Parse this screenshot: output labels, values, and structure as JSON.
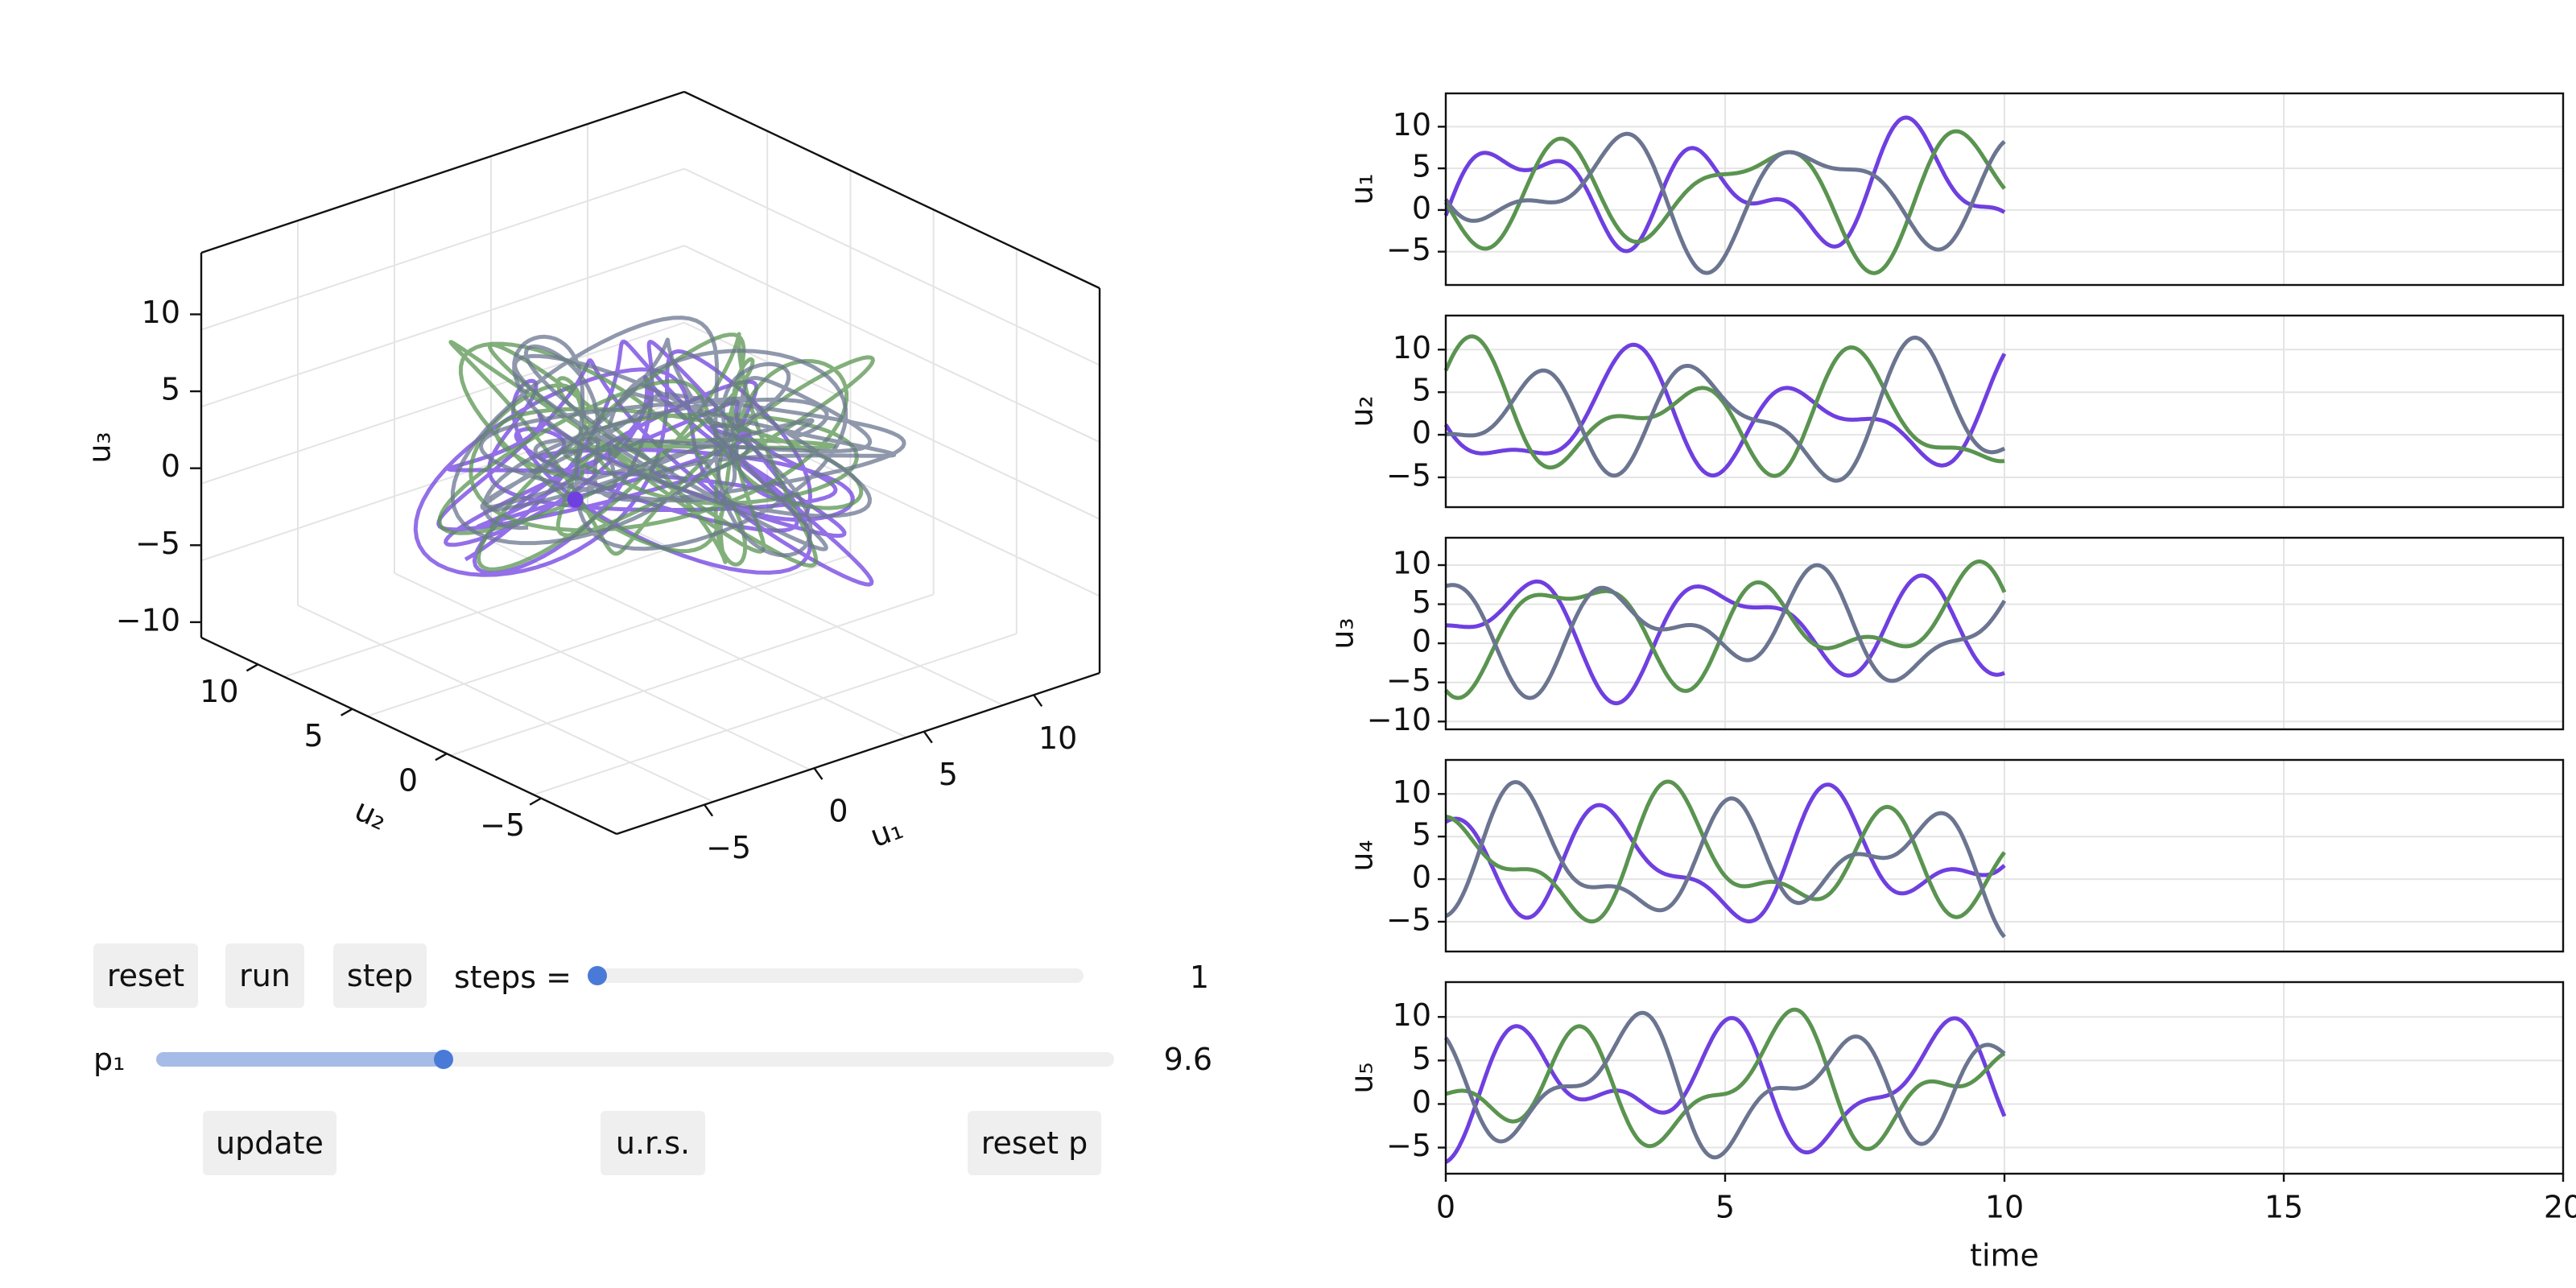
{
  "colors": {
    "purple": "#6f3fe0",
    "green": "#5a9450",
    "slate": "#6b7590",
    "grid": "#e4e4e4",
    "axis": "#111111",
    "button_bg": "#efefef",
    "slider_fill": "#a6bbe6",
    "slider_knob": "#4a7ad8"
  },
  "controls": {
    "reset_label": "reset",
    "run_label": "run",
    "step_label": "step",
    "steps_label": "steps =",
    "steps_value": "1",
    "steps_fraction": 0.0,
    "p1_label": "p₁",
    "p1_value": "9.6",
    "p1_fraction": 0.3,
    "update_label": "update",
    "urs_label": "u.r.s.",
    "reset_p_label": "reset p"
  },
  "chart_data": [
    {
      "type": "line3d",
      "xlabel": "u₁",
      "ylabel": "u₂",
      "zlabel": "u₃",
      "x_ticks": [
        "−5",
        "0",
        "5",
        "10"
      ],
      "y_ticks": [
        "−5",
        "0",
        "5",
        "10"
      ],
      "z_ticks": [
        "−10",
        "−5",
        "0",
        "5",
        "10"
      ],
      "xlim": [
        -9,
        13
      ],
      "ylim": [
        -9,
        13
      ],
      "zlim": [
        -11,
        14
      ],
      "grid": true,
      "series_colors": [
        "purple",
        "green",
        "slate"
      ]
    },
    {
      "type": "line",
      "xlabel": "time",
      "x_ticks": [
        "0",
        "5",
        "10",
        "15",
        "20"
      ],
      "xlim": [
        0,
        20
      ],
      "data_tmax": 10,
      "series_colors": [
        "purple",
        "green",
        "slate"
      ],
      "panels": [
        {
          "ylabel": "u₁",
          "ylim": [
            -9,
            14
          ],
          "y_ticks": [
            "−5",
            "0",
            "5",
            "10"
          ],
          "yvals": [
            -5,
            0,
            5,
            10
          ]
        },
        {
          "ylabel": "u₂",
          "ylim": [
            -8.5,
            14
          ],
          "y_ticks": [
            "−5",
            "0",
            "5",
            "10"
          ],
          "yvals": [
            -5,
            0,
            5,
            10
          ]
        },
        {
          "ylabel": "u₃",
          "ylim": [
            -11,
            13.5
          ],
          "y_ticks": [
            "−10",
            "−5",
            "0",
            "5",
            "10"
          ],
          "yvals": [
            -10,
            -5,
            0,
            5,
            10
          ]
        },
        {
          "ylabel": "u₄",
          "ylim": [
            -8.5,
            14
          ],
          "y_ticks": [
            "−5",
            "0",
            "5",
            "10"
          ],
          "yvals": [
            -5,
            0,
            5,
            10
          ]
        },
        {
          "ylabel": "u₅",
          "ylim": [
            -8,
            14
          ],
          "y_ticks": [
            "−5",
            "0",
            "5",
            "10"
          ],
          "yvals": [
            -5,
            0,
            5,
            10
          ]
        }
      ]
    }
  ]
}
